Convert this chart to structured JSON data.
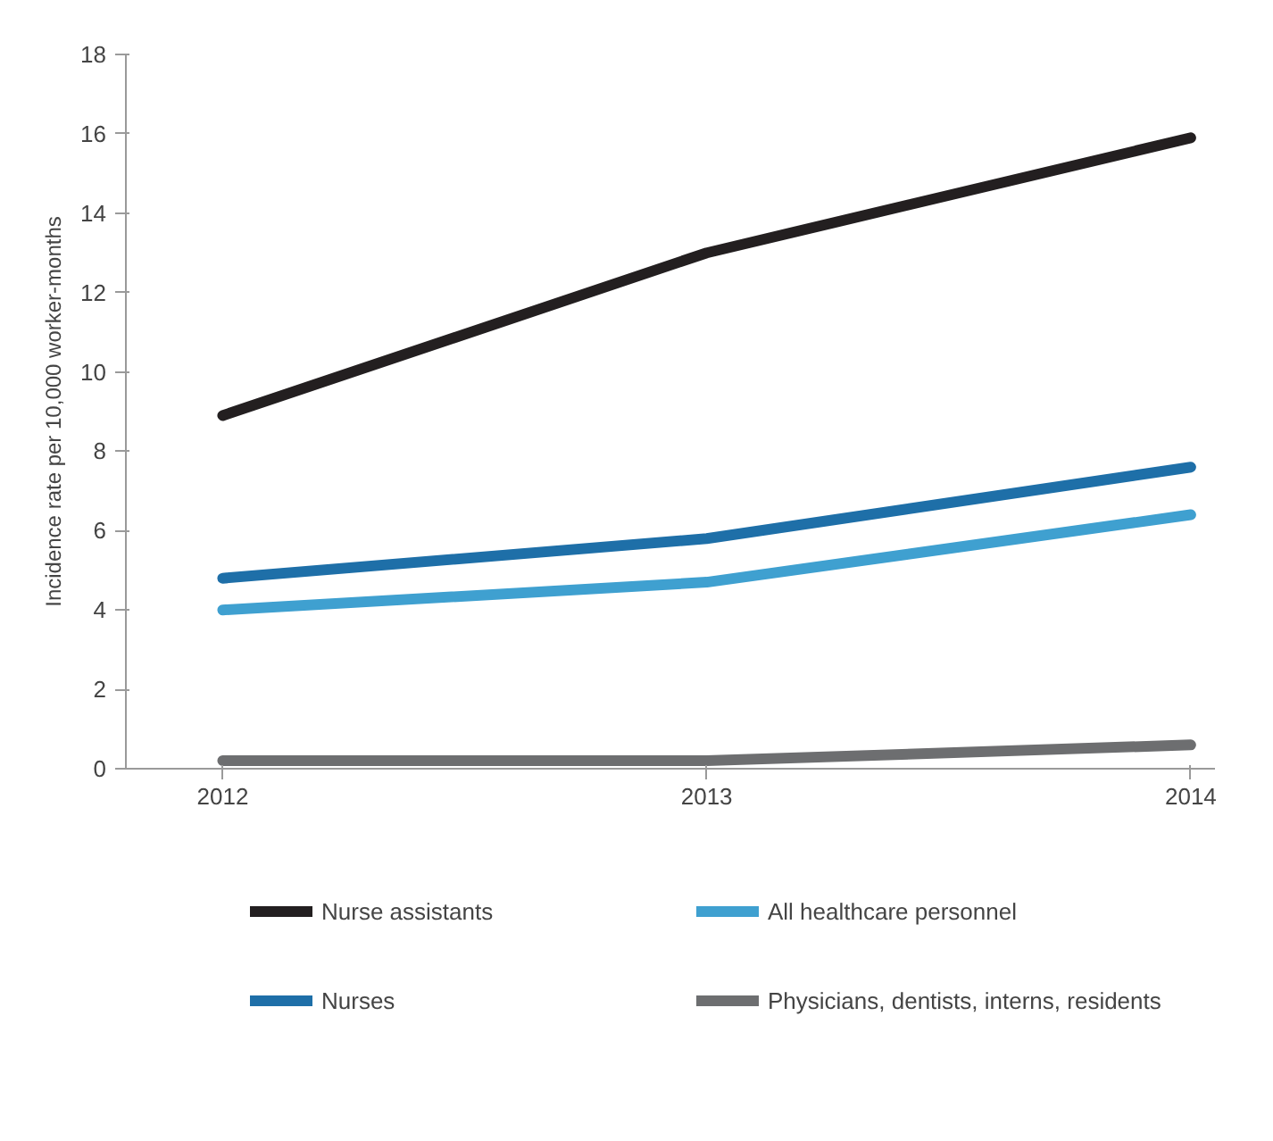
{
  "chart_data": {
    "type": "line",
    "ylabel": "Incidence rate per 10,000 worker-months",
    "x": [
      2012,
      2013,
      2014
    ],
    "xlim": [
      2011.8,
      2014.05
    ],
    "xticks": [
      2012,
      2013,
      2014
    ],
    "ylim": [
      0,
      18
    ],
    "yticks": [
      0,
      2,
      4,
      6,
      8,
      10,
      12,
      14,
      16,
      18
    ],
    "grid": false,
    "legend": "bottom",
    "marker": "none",
    "line_style": "solid",
    "series": [
      {
        "name": "Nurse assistants",
        "color": "#231f20",
        "values": [
          8.9,
          13.0,
          15.9
        ]
      },
      {
        "name": "All healthcare personnel",
        "color": "#3fa0d0",
        "values": [
          4.0,
          4.7,
          6.4
        ]
      },
      {
        "name": "Nurses",
        "color": "#1e6fa8",
        "values": [
          4.8,
          5.8,
          7.6
        ]
      },
      {
        "name": "Physicians, dentists, interns, residents",
        "color": "#6d6e70",
        "values": [
          0.2,
          0.2,
          0.6
        ]
      }
    ]
  }
}
